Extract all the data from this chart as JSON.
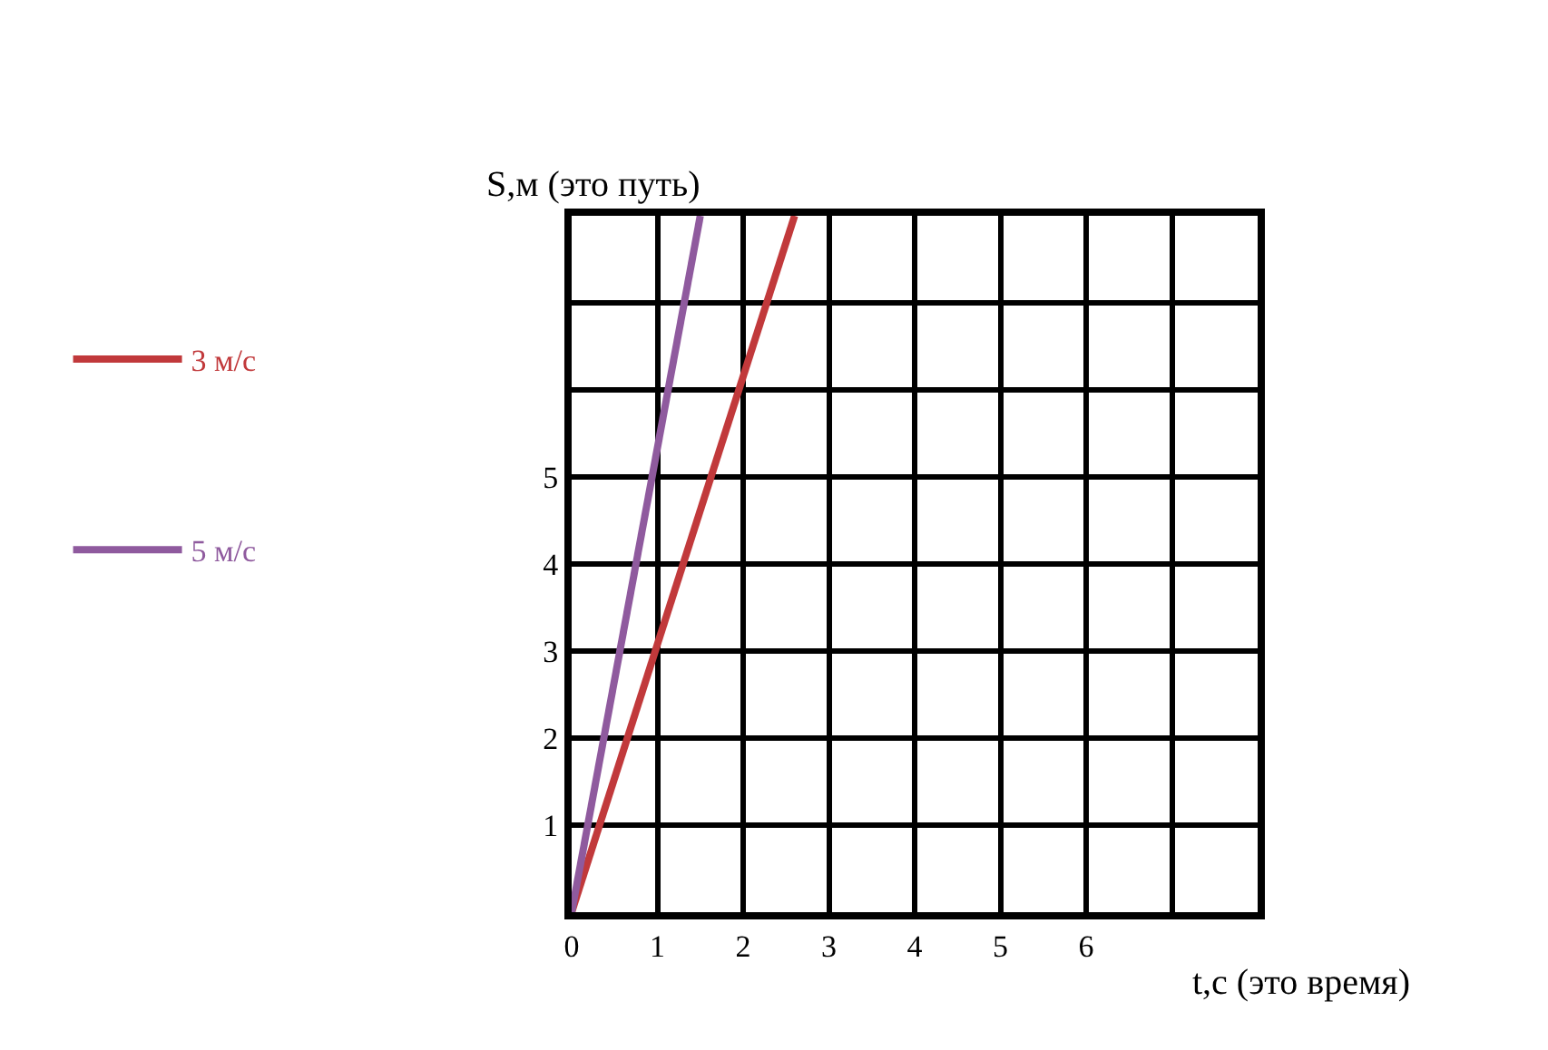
{
  "chart_data": {
    "type": "line",
    "xlabel": "t,с (это время)",
    "ylabel": "S,м (это путь)",
    "series": [
      {
        "name": "3 м/с",
        "color": "#c1393b",
        "x": [
          0,
          2.6
        ],
        "values": [
          0,
          8
        ]
      },
      {
        "name": "5 м/с",
        "color": "#8f5a9e",
        "x": [
          0,
          1.5
        ],
        "values": [
          0,
          8
        ]
      }
    ],
    "xlim": [
      0,
      8
    ],
    "ylim": [
      0,
      8
    ],
    "xticks": [
      0,
      1,
      2,
      3,
      4,
      5,
      6,
      {
        "value": 7,
        "label": null
      }
    ],
    "yticks": [
      1,
      2,
      3,
      4,
      5,
      {
        "value": 6,
        "label": null
      },
      {
        "value": 7,
        "label": null
      }
    ],
    "grid": true,
    "legend": "left",
    "marker": "none",
    "line_style": "solid"
  }
}
